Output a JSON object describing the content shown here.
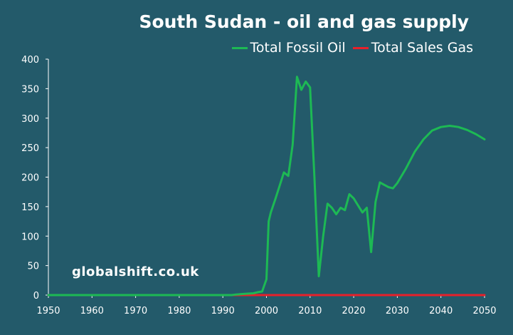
{
  "chart_data": {
    "type": "line",
    "title": "South Sudan - oil and gas supply",
    "xlabel": "",
    "ylabel": "",
    "xlim": [
      1950,
      2050
    ],
    "ylim": [
      0,
      400
    ],
    "x_ticks": [
      1950,
      1960,
      1970,
      1980,
      1990,
      2000,
      2010,
      2020,
      2030,
      2040,
      2050
    ],
    "y_ticks": [
      0,
      50,
      100,
      150,
      200,
      250,
      300,
      350,
      400
    ],
    "grid": false,
    "legend_position": "top-right",
    "watermark": "globalshift.co.uk",
    "series": [
      {
        "name": "Total Fossil Oil",
        "color": "#1db954",
        "points": [
          [
            1950,
            0
          ],
          [
            1992,
            0
          ],
          [
            1993,
            1
          ],
          [
            1995,
            2
          ],
          [
            1997,
            3
          ],
          [
            1998,
            5
          ],
          [
            1999,
            6
          ],
          [
            2000,
            27
          ],
          [
            2000.5,
            125
          ],
          [
            2001,
            140
          ],
          [
            2002,
            162
          ],
          [
            2003,
            185
          ],
          [
            2004,
            208
          ],
          [
            2005,
            202
          ],
          [
            2006,
            255
          ],
          [
            2007,
            370
          ],
          [
            2008,
            348
          ],
          [
            2009,
            362
          ],
          [
            2010,
            352
          ],
          [
            2011,
            200
          ],
          [
            2012,
            32
          ],
          [
            2013,
            100
          ],
          [
            2014,
            155
          ],
          [
            2015,
            148
          ],
          [
            2016,
            137
          ],
          [
            2017,
            148
          ],
          [
            2018,
            144
          ],
          [
            2019,
            171
          ],
          [
            2020,
            164
          ],
          [
            2021,
            152
          ],
          [
            2022,
            140
          ],
          [
            2023,
            148
          ],
          [
            2024,
            73
          ],
          [
            2025,
            158
          ],
          [
            2026,
            191
          ],
          [
            2027,
            187
          ],
          [
            2028,
            183
          ],
          [
            2029,
            181
          ],
          [
            2030,
            190
          ],
          [
            2032,
            215
          ],
          [
            2034,
            243
          ],
          [
            2036,
            264
          ],
          [
            2038,
            279
          ],
          [
            2040,
            285
          ],
          [
            2042,
            287
          ],
          [
            2044,
            285
          ],
          [
            2046,
            280
          ],
          [
            2048,
            273
          ],
          [
            2050,
            264
          ]
        ]
      },
      {
        "name": "Total Sales Gas",
        "color": "#e8202a",
        "points": [
          [
            1950,
            0
          ],
          [
            2050,
            0
          ]
        ]
      }
    ]
  }
}
